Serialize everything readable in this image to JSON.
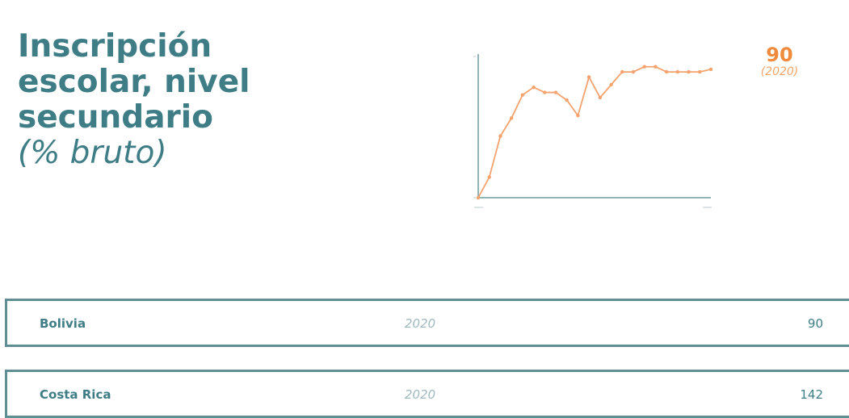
{
  "title": {
    "lines": [
      "Inscripción",
      "escolar, nivel",
      "secundario"
    ],
    "unit": "(% bruto)"
  },
  "callout": {
    "value": "90",
    "year": "(2020)"
  },
  "colors": {
    "accent": "#f08a3c",
    "teal": "#3f7d86",
    "border": "#5f8f95"
  },
  "chart_data": {
    "type": "line",
    "title": "",
    "xlabel": "",
    "ylabel": "",
    "x": [
      1,
      2,
      3,
      4,
      5,
      6,
      7,
      8,
      9,
      10,
      11,
      12,
      13,
      14,
      15,
      16,
      17,
      18,
      19,
      20,
      21,
      22
    ],
    "series": [
      {
        "values": [
          40,
          48,
          64,
          71,
          80,
          83,
          81,
          81,
          78,
          72,
          87,
          79,
          84,
          89,
          89,
          91,
          91,
          89,
          89,
          89,
          89,
          90
        ]
      }
    ],
    "ylim": [
      40,
      95
    ],
    "grid": false
  },
  "table": {
    "rows": [
      {
        "country": "Bolivia",
        "year": "2020",
        "value": "90"
      },
      {
        "country": "Costa Rica",
        "year": "2020",
        "value": "142"
      }
    ]
  }
}
